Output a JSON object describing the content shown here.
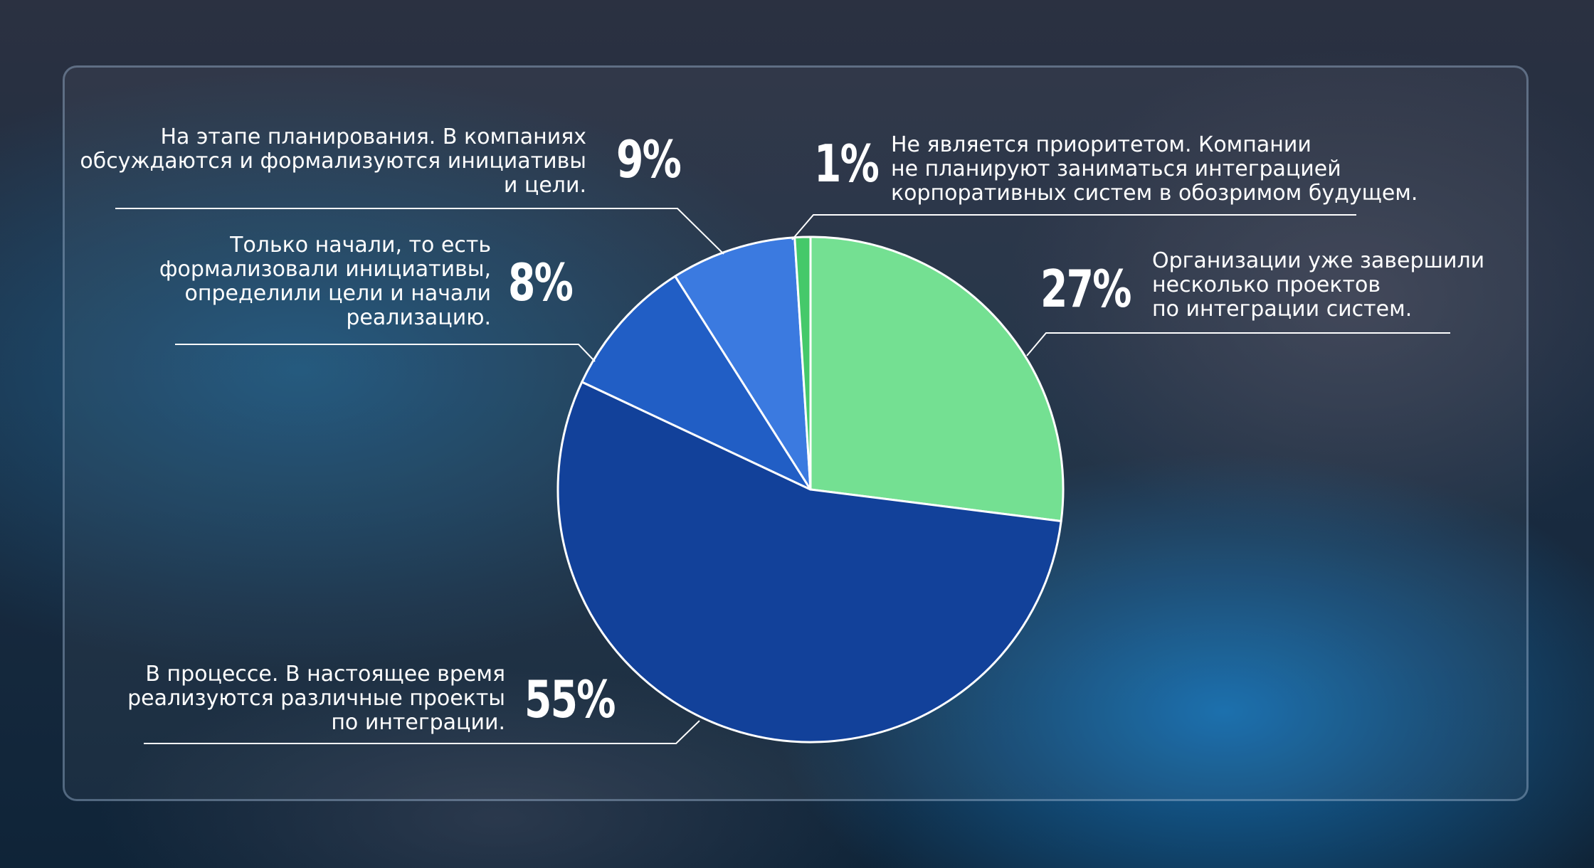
{
  "chart_data": {
    "type": "pie",
    "title": "",
    "slices": [
      {
        "label_lines": [
          "Организации уже завершили",
          "несколько проектов",
          "по интеграции систем."
        ],
        "value": 27,
        "value_label": "27%",
        "color": "#74e092"
      },
      {
        "label_lines": [
          "В процессе. В настоящее время",
          "реализуются различные проекты",
          "по интеграции."
        ],
        "value": 55,
        "value_label": "55%",
        "color": "#12419a"
      },
      {
        "label_lines": [
          "На этапе планирования. В компаниях",
          "обсуждаются и формализуются инициативы",
          "и цели."
        ],
        "value": 9,
        "value_label": "9%",
        "color": "#215ec5"
      },
      {
        "label_lines": [
          "Только начали, то есть",
          "формализовали инициативы,",
          "определили цели и начали",
          "реализацию."
        ],
        "value": 8,
        "value_label": "8%",
        "color": "#3b7ae0"
      },
      {
        "label_lines": [
          "Не является приоритетом. Компании",
          "не планируют заниматься интеграцией",
          "корпоративных систем в обозримом будущем."
        ],
        "value": 1,
        "value_label": "1%",
        "color": "#45c96a"
      }
    ],
    "legend": "none"
  }
}
